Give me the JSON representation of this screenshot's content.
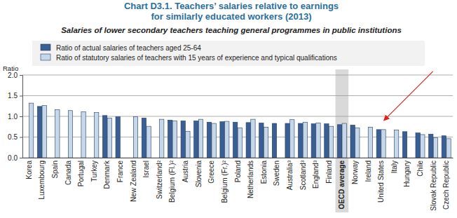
{
  "chart_data": {
    "type": "bar",
    "title": [
      "Chart D3.1. Teachers’ salaries relative to earnings",
      "for similarly educated workers (2013)"
    ],
    "subtitle": "Salaries of lower secondary teachers teaching general programmes in public institutions",
    "y_label": "Ratio",
    "categories": [
      "Korea",
      "Luxembourg",
      "Spain",
      "Canada",
      "Portugal",
      "Turkey",
      "Denmark",
      "France",
      "New Zealand",
      "Israel",
      "Switzerland²",
      "Belgium (Fl.)²",
      "Austria",
      "Slovenia",
      "Greece",
      "Belgium (Fr.)²",
      "Poland",
      "Netherlands",
      "Estonia",
      "Sweden",
      "Australia³",
      "Scotland³",
      "England³",
      "Finland",
      "OECD average",
      "Norway",
      "Ireland",
      "United States",
      "Italy",
      "Hungary",
      "Chile",
      "Slovak Republic",
      "Czech Republic"
    ],
    "series": [
      {
        "name": "Ratio of actual salaries of teachers aged 25-64",
        "color": "#3b5e93",
        "values": [
          null,
          1.24,
          null,
          null,
          null,
          null,
          1.02,
          0.99,
          null,
          0.96,
          null,
          0.91,
          0.89,
          0.89,
          0.86,
          0.87,
          0.86,
          0.85,
          0.84,
          0.83,
          0.83,
          0.83,
          0.82,
          0.82,
          0.8,
          0.79,
          null,
          0.68,
          null,
          0.63,
          0.6,
          0.57,
          0.53
        ]
      },
      {
        "name": "Ratio of statutory salaries of teachers with 15 years of experience and typical qualifications",
        "color": "#c6d7ea",
        "values": [
          1.32,
          1.26,
          1.16,
          1.14,
          1.11,
          1.09,
          0.96,
          null,
          0.99,
          0.76,
          0.93,
          0.89,
          0.64,
          0.93,
          0.83,
          0.88,
          0.72,
          0.93,
          0.74,
          null,
          0.92,
          0.86,
          0.84,
          0.76,
          0.83,
          0.72,
          0.74,
          0.68,
          0.67,
          null,
          0.56,
          0.48,
          0.46
        ]
      }
    ],
    "ylim": [
      0,
      2
    ],
    "yticks": [
      {
        "value": 0,
        "label": "0.0"
      },
      {
        "value": 0.5,
        "label": "0.5"
      },
      {
        "value": 1,
        "label": "1.0"
      },
      {
        "value": 1.5,
        "label": "1.5"
      },
      {
        "value": 2,
        "label": "2.0"
      }
    ],
    "grid": true,
    "legend": "top"
  }
}
